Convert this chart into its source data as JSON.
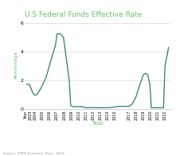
{
  "title": "U.S Federal Funds Effective Rate",
  "xlabel": "Year",
  "ylabel": "Percentage",
  "source": "Source: FRED Economic Data, 2023",
  "line_color": "#2a7a75",
  "background_color": "#ffffff",
  "title_color": "#6abf69",
  "xlabel_color": "#6abf69",
  "ylabel_color": "#6abf69",
  "source_color": "#999999",
  "ylim": [
    0,
    6.2
  ],
  "yticks": [
    0,
    2,
    4,
    6
  ],
  "x_data": [
    2002.8,
    2003.2,
    2003.5,
    2003.8,
    2004.2,
    2004.8,
    2005.5,
    2006.2,
    2006.8,
    2007.0,
    2007.5,
    2007.9,
    2008.3,
    2008.7,
    2008.9,
    2009.2,
    2009.8,
    2010.5,
    2011.0,
    2011.5,
    2012.0,
    2012.5,
    2013.0,
    2013.5,
    2014.0,
    2014.5,
    2015.0,
    2015.5,
    2016.0,
    2016.5,
    2016.8,
    2017.0,
    2017.5,
    2018.0,
    2018.5,
    2019.0,
    2019.3,
    2019.6,
    2019.9,
    2020.1,
    2020.4,
    2020.8,
    2021.0,
    2021.5,
    2021.8,
    2022.0,
    2022.5
  ],
  "y_data": [
    1.75,
    1.7,
    1.3,
    1.0,
    1.0,
    1.5,
    2.25,
    3.5,
    4.5,
    5.25,
    5.25,
    5.0,
    3.5,
    2.0,
    0.25,
    0.18,
    0.18,
    0.18,
    0.1,
    0.1,
    0.12,
    0.1,
    0.1,
    0.1,
    0.1,
    0.12,
    0.15,
    0.2,
    0.2,
    0.2,
    0.2,
    0.2,
    0.4,
    0.9,
    1.7,
    2.4,
    2.5,
    2.4,
    1.75,
    0.1,
    0.1,
    0.1,
    0.1,
    0.1,
    0.1,
    3.0,
    4.3
  ],
  "xtick_positions": [
    2003,
    2004,
    2005,
    2006,
    2007,
    2008,
    2009,
    2010,
    2011,
    2012,
    2013,
    2014,
    2015,
    2017,
    2018,
    2019,
    2020,
    2021,
    2022
  ],
  "xlim": [
    2002.5,
    2022.8
  ]
}
